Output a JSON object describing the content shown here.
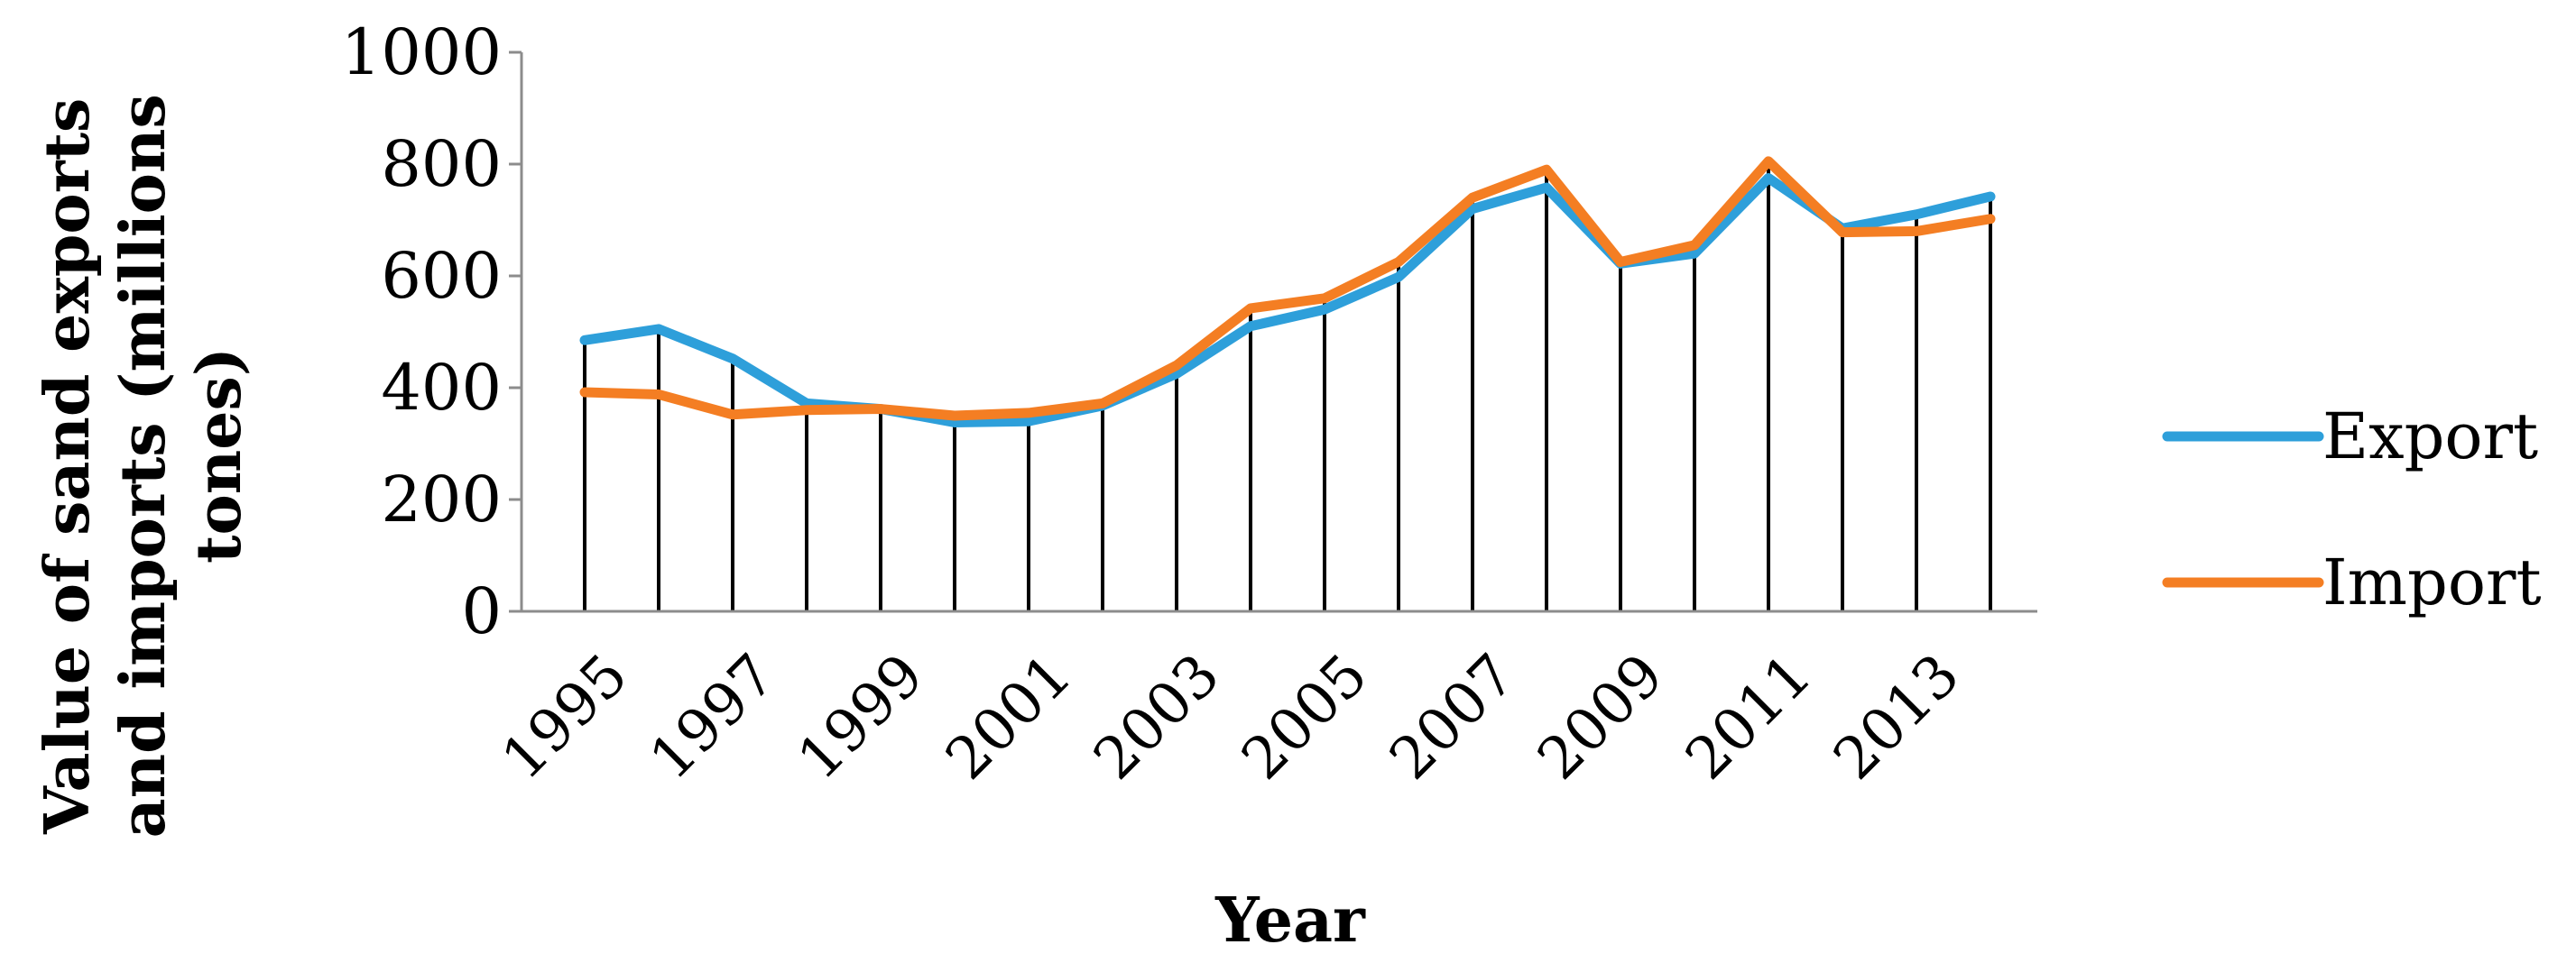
{
  "chart_data": {
    "type": "line",
    "title": "",
    "xlabel": "Year",
    "ylabel": "Value of sand exports and imports (millions tones)",
    "ylabel_lines": [
      "Value of sand exports",
      "and imports (millions",
      "tones)"
    ],
    "x": [
      1995,
      1996,
      1997,
      1998,
      1999,
      2000,
      2001,
      2002,
      2003,
      2004,
      2005,
      2006,
      2007,
      2008,
      2009,
      2010,
      2011,
      2012,
      2013,
      2014
    ],
    "x_tick_labels": [
      "1995",
      "1997",
      "1999",
      "2001",
      "2003",
      "2005",
      "2007",
      "2009",
      "2011",
      "2013"
    ],
    "y_tick_labels": [
      "0",
      "200",
      "400",
      "600",
      "800",
      "1000"
    ],
    "ylim": [
      0,
      1000
    ],
    "grid": false,
    "drop_lines": true,
    "legend_position": "right",
    "series": [
      {
        "name": "Export",
        "color": "#2E9FDA",
        "values": [
          485,
          505,
          452,
          372,
          362,
          338,
          340,
          368,
          425,
          510,
          540,
          598,
          720,
          758,
          622,
          640,
          775,
          685,
          710,
          742
        ]
      },
      {
        "name": "Import",
        "color": "#F47E23",
        "values": [
          392,
          388,
          352,
          360,
          362,
          350,
          355,
          372,
          440,
          542,
          560,
          625,
          740,
          790,
          625,
          655,
          805,
          678,
          680,
          702
        ]
      }
    ]
  }
}
